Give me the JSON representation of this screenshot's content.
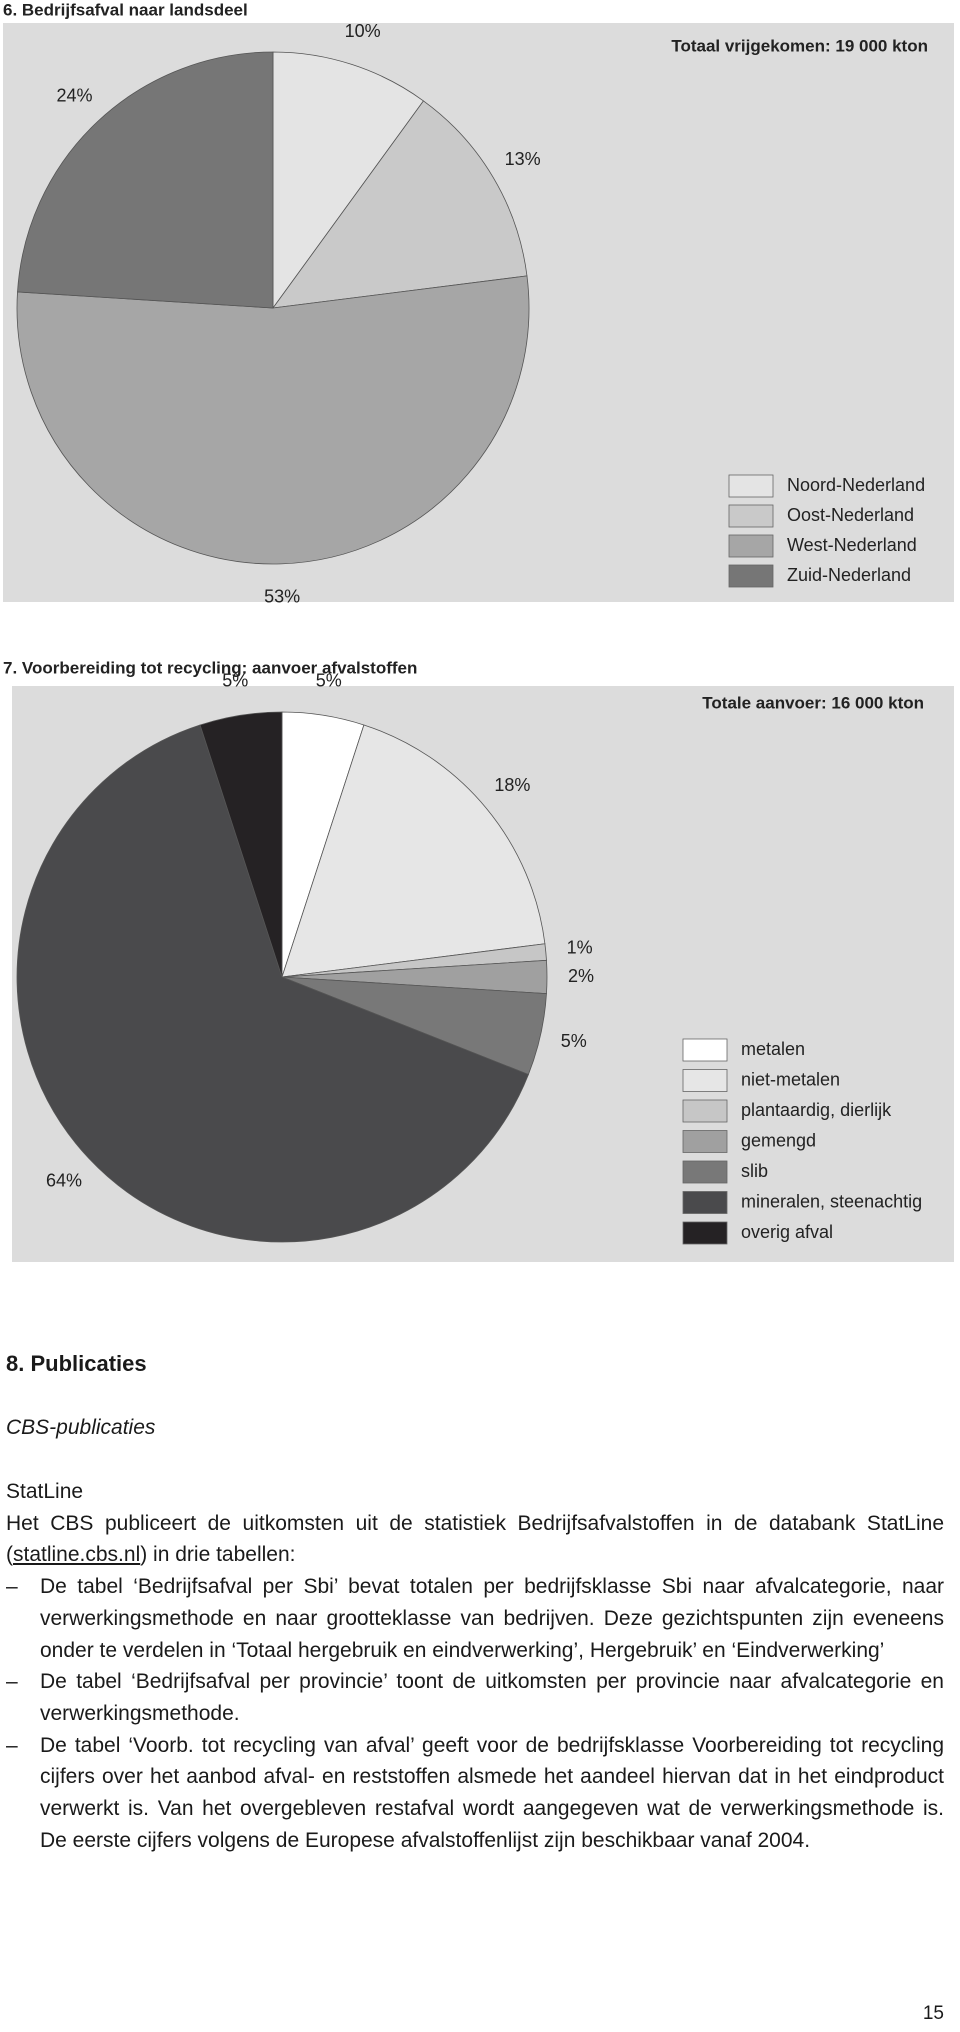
{
  "chart_data": [
    {
      "type": "pie",
      "title": "6. Bedrijfsafval naar landsdeel",
      "annotation": "Totaal vrijgekomen: 19 000 kton",
      "categories": [
        "Noord-Nederland",
        "Oost-Nederland",
        "West-Nederland",
        "Zuid-Nederland"
      ],
      "values": [
        10,
        13,
        53,
        24
      ],
      "value_labels": [
        "10%",
        "13%",
        "53%",
        "24%"
      ],
      "colors": [
        "#e4e4e4",
        "#c9c9c9",
        "#a6a6a6",
        "#767676"
      ]
    },
    {
      "type": "pie",
      "title": "7. Voorbereiding tot recycling: aanvoer afvalstoffen",
      "annotation": "Totale aanvoer: 16 000 kton",
      "categories": [
        "metalen",
        "niet-metalen",
        "plantaardig, dierlijk",
        "gemengd",
        "slib",
        "mineralen, steenachtig",
        "overig afval"
      ],
      "values": [
        5,
        18,
        1,
        2,
        5,
        64,
        5
      ],
      "value_labels": [
        "5%",
        "18%",
        "1%",
        "2%",
        "5%",
        "64%",
        "5%"
      ],
      "colors": [
        "#ffffff",
        "#e6e6e6",
        "#c6c6c6",
        "#a0a0a0",
        "#787878",
        "#4a4a4c",
        "#252224"
      ]
    }
  ],
  "publications": {
    "heading": "8. Publicaties",
    "subheading": "CBS-publicaties",
    "statline": "StatLine",
    "intro_before": "Het CBS publiceert de uitkomsten uit de statistiek Bedrijfsafvalstoffen in de databank StatLine (",
    "link": "statline.cbs.nl",
    "intro_after": ") in drie tabellen:",
    "bullets": [
      "De tabel ‘Bedrijfsafval per Sbi’ bevat totalen per bedrijfsklasse Sbi naar afvalcategorie, naar verwerkingsmethode en naar grootteklasse van bedrijven. Deze gezichtspunten zijn eveneens onder te verdelen in ‘Totaal hergebruik en eindverwerking’, Hergebruik’ en ‘Eindverwerking’",
      "De tabel ‘Bedrijfsafval per provincie’ toont de uitkomsten per provincie naar afvalcategorie en verwerkingsmethode.",
      "De tabel ‘Voorb. tot recycling van afval’ geeft voor de bedrijfsklasse Voorbereiding tot recycling cijfers over het aanbod afval- en reststoffen alsmede het aandeel hiervan dat in het eindproduct verwerkt is. Van het overgebleven restafval wordt aangegeven wat de verwerkingsmethode is. De eerste cijfers volgens de Europese afvalstoffenlijst zijn beschikbaar vanaf 2004."
    ]
  },
  "page_number": "15"
}
